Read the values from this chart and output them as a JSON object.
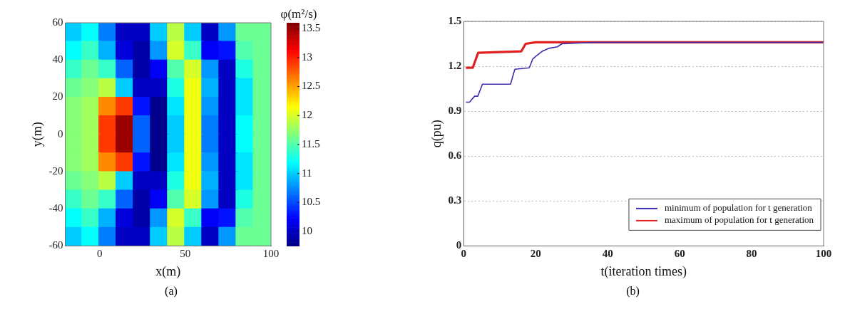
{
  "chart_data": [
    {
      "type": "scatter",
      "marker": "square",
      "xlabel": "x(m)",
      "ylabel": "y(m)",
      "clabel": "φ(m²/s)",
      "xlim": [
        -20,
        100
      ],
      "xticks": [
        0,
        50,
        100
      ],
      "ylim": [
        -60,
        60
      ],
      "yticks": [
        -60,
        -40,
        -20,
        0,
        20,
        40,
        60
      ],
      "grid": false,
      "clim": [
        9.75,
        13.6
      ],
      "cticks": [
        10,
        10.5,
        11,
        11.5,
        12,
        12.5,
        13,
        13.5
      ],
      "annotations": [
        "(a)"
      ],
      "x": [
        -15,
        -5,
        5,
        15,
        25,
        35,
        45,
        55,
        65,
        75,
        85,
        95,
        -15,
        -5,
        5,
        15,
        25,
        35,
        45,
        55,
        65,
        75,
        85,
        95,
        -15,
        -5,
        5,
        15,
        25,
        35,
        45,
        55,
        65,
        75,
        85,
        95,
        -15,
        -5,
        5,
        15,
        25,
        35,
        45,
        55,
        65,
        75,
        85,
        95,
        -15,
        -5,
        5,
        15,
        25,
        35,
        45,
        55,
        65,
        75,
        85,
        95,
        -15,
        -5,
        5,
        15,
        25,
        35,
        45,
        55,
        65,
        75,
        85,
        95,
        -15,
        -5,
        5,
        15,
        25,
        35,
        45,
        55,
        65,
        75,
        85,
        95,
        -15,
        -5,
        5,
        15,
        25,
        35,
        45,
        55,
        65,
        75,
        85,
        95,
        -15,
        -5,
        5,
        15,
        25,
        35,
        45,
        55,
        65,
        75,
        85,
        95,
        -15,
        -5,
        5,
        15,
        25,
        35,
        45,
        55,
        65,
        75,
        85,
        95,
        -15,
        -5,
        5,
        15,
        25,
        35,
        45,
        55,
        65,
        75,
        85,
        95,
        -15,
        -5,
        5,
        15,
        25,
        35,
        45,
        55,
        65,
        75,
        85,
        95
      ],
      "values": [
        55,
        55,
        55,
        55,
        55,
        55,
        55,
        55,
        55,
        55,
        55,
        55,
        45,
        45,
        45,
        45,
        45,
        45,
        45,
        45,
        45,
        45,
        45,
        45,
        35,
        35,
        35,
        35,
        35,
        35,
        35,
        35,
        35,
        35,
        35,
        35,
        25,
        25,
        25,
        25,
        25,
        25,
        25,
        25,
        25,
        25,
        25,
        25,
        15,
        15,
        15,
        15,
        15,
        15,
        15,
        15,
        15,
        15,
        15,
        15,
        5,
        5,
        5,
        5,
        5,
        5,
        5,
        5,
        5,
        5,
        5,
        5,
        -5,
        -5,
        -5,
        -5,
        -5,
        -5,
        -5,
        -5,
        -5,
        -5,
        -5,
        -5,
        -15,
        -15,
        -15,
        -15,
        -15,
        -15,
        -15,
        -15,
        -15,
        -15,
        -15,
        -15,
        -25,
        -25,
        -25,
        -25,
        -25,
        -25,
        -25,
        -25,
        -25,
        -25,
        -25,
        -25,
        -35,
        -35,
        -35,
        -35,
        -35,
        -35,
        -35,
        -35,
        -35,
        -35,
        -35,
        -35,
        -45,
        -45,
        -45,
        -45,
        -45,
        -45,
        -45,
        -45,
        -45,
        -45,
        -45,
        -45,
        -55,
        -55,
        -55,
        -55,
        -55,
        -55,
        -55,
        -55,
        -55,
        -55,
        -55,
        -55
      ],
      "cvalues": [
        11.0,
        11.2,
        10.7,
        10.0,
        10.0,
        11.0,
        11.9,
        11.0,
        10.0,
        10.8,
        11.6,
        11.6,
        11.2,
        11.4,
        10.9,
        10.1,
        9.9,
        10.8,
        12.0,
        11.4,
        10.2,
        10.3,
        11.5,
        11.6,
        11.4,
        11.6,
        11.4,
        10.6,
        9.9,
        10.2,
        11.5,
        12.0,
        10.8,
        10.0,
        11.3,
        11.6,
        11.6,
        11.7,
        11.9,
        11.0,
        10.0,
        10.0,
        11.3,
        12.1,
        10.9,
        10.0,
        11.1,
        11.6,
        11.7,
        11.8,
        12.6,
        12.9,
        10.3,
        9.8,
        11.1,
        12.1,
        10.8,
        10.0,
        11.1,
        11.6,
        11.7,
        11.8,
        12.9,
        13.5,
        10.6,
        9.8,
        11.0,
        12.1,
        10.7,
        10.0,
        11.2,
        11.6,
        11.7,
        11.8,
        12.9,
        13.5,
        10.6,
        9.8,
        11.0,
        12.1,
        10.7,
        10.0,
        11.2,
        11.6,
        11.7,
        11.8,
        12.6,
        12.9,
        10.3,
        9.8,
        11.1,
        12.1,
        10.8,
        10.0,
        11.1,
        11.6,
        11.6,
        11.7,
        11.9,
        11.0,
        10.0,
        10.0,
        11.3,
        12.1,
        10.9,
        10.0,
        11.1,
        11.6,
        11.4,
        11.6,
        11.4,
        10.6,
        9.9,
        10.2,
        11.5,
        12.0,
        10.8,
        10.0,
        11.3,
        11.6,
        11.2,
        11.4,
        10.9,
        10.1,
        9.9,
        10.8,
        12.0,
        11.4,
        10.2,
        10.3,
        11.5,
        11.6,
        11.0,
        11.2,
        10.7,
        10.0,
        10.0,
        11.0,
        11.9,
        11.0,
        10.0,
        10.8,
        11.6,
        11.6
      ]
    },
    {
      "type": "line",
      "xlabel": "t(iteration times)",
      "ylabel": "q(pu)",
      "xlim": [
        0,
        100
      ],
      "xticks": [
        0,
        20,
        40,
        60,
        80,
        100
      ],
      "ylim": [
        0,
        1.5
      ],
      "yticks": [
        0,
        0.3,
        0.6,
        0.9,
        1.2,
        1.5
      ],
      "grid": "y",
      "legend": "bottom right",
      "marker": "none",
      "line_style": "solid",
      "annotations": [
        "(b)"
      ],
      "series": [
        {
          "name": "minimum of population for t generation",
          "color": "#3b2fb0",
          "x": [
            0.6,
            1.6,
            3,
            3.9,
            5.2,
            13,
            14.2,
            18.2,
            19.2,
            20.2,
            21.8,
            23.7,
            26,
            27.3,
            36,
            100
          ],
          "values": [
            0.96,
            0.96,
            1.0,
            1.0,
            1.08,
            1.08,
            1.18,
            1.19,
            1.25,
            1.27,
            1.3,
            1.32,
            1.33,
            1.35,
            1.36,
            1.36
          ]
        },
        {
          "name": "maximum of population for t generation",
          "color": "#e02020",
          "x": [
            0.6,
            2.5,
            4,
            16,
            17.2,
            20,
            100
          ],
          "values": [
            1.19,
            1.19,
            1.29,
            1.3,
            1.35,
            1.36,
            1.36
          ]
        }
      ]
    }
  ]
}
